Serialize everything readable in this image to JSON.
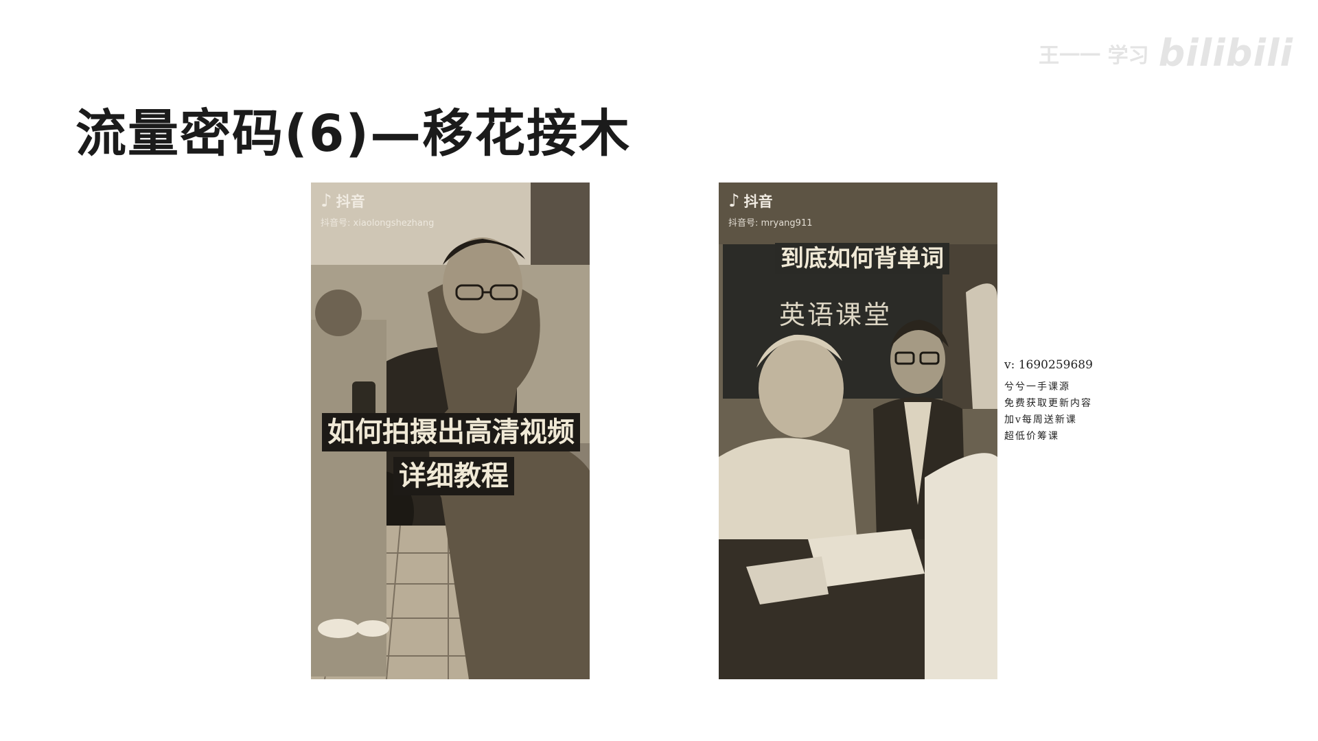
{
  "slide": {
    "title": "流量密码(6)—移花接木",
    "watermark": {
      "user": "王一一 学习",
      "logo": "bilibili"
    }
  },
  "videos": [
    {
      "platform": "抖音",
      "account_label": "抖音号: xiaolongshezhang",
      "captions": [
        "如何拍摄出高清视频",
        "详细教程"
      ]
    },
    {
      "platform": "抖音",
      "account_label": "抖音号: mryang911",
      "captions": [
        "到底如何背单词"
      ],
      "board_text": "英语课堂"
    }
  ],
  "promo": {
    "contact": "v: 1690259689",
    "lines": [
      "兮兮一手课源",
      "免费获取更新内容",
      "加v每周送新课",
      "超低价筹课"
    ]
  },
  "colors": {
    "title": "#1b1b1b",
    "sepia_dark": "#3c3428",
    "sepia_light": "#d9cdb4",
    "caption_bg": "#1d1a16",
    "caption_text": "#f0e9d6"
  }
}
